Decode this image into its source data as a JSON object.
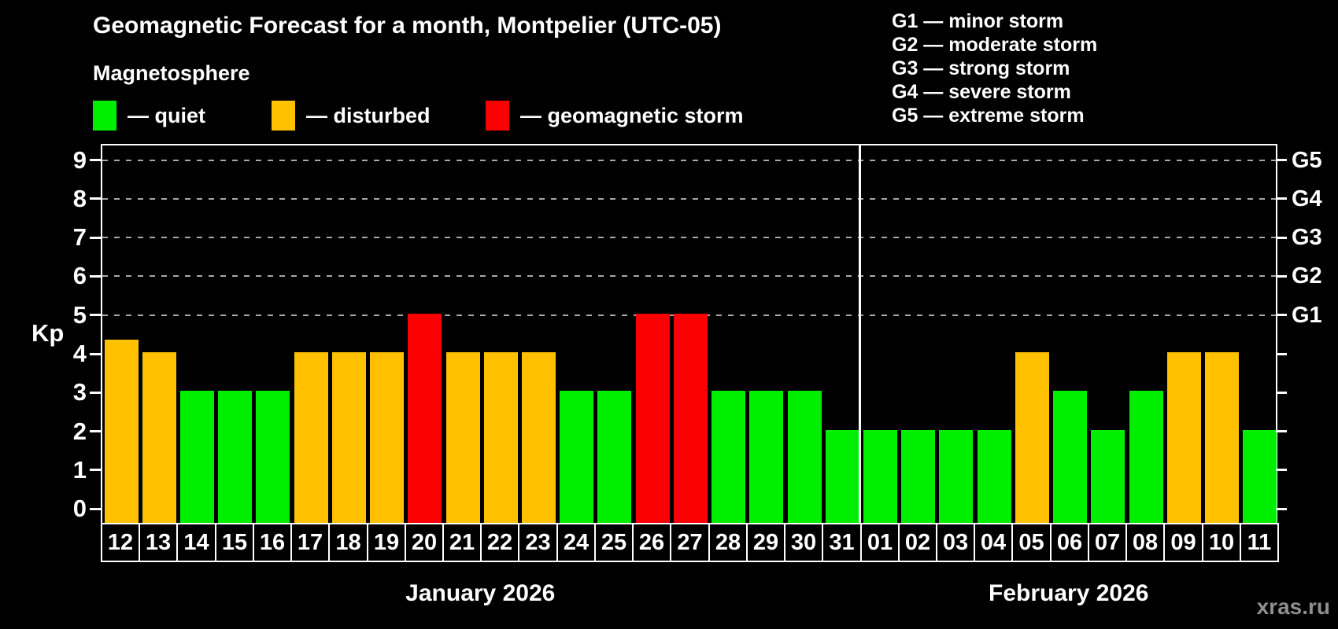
{
  "header": {
    "title": "Geomagnetic Forecast for a month, Montpelier (UTC-05)",
    "subtitle": "Magnetosphere"
  },
  "status_legend": {
    "items": [
      {
        "key": "quiet",
        "label": "— quiet",
        "color": "#00EE00"
      },
      {
        "key": "disturbed",
        "label": "— disturbed",
        "color": "#FFC000"
      },
      {
        "key": "storm",
        "label": "— geomagnetic storm",
        "color": "#FB0000"
      }
    ]
  },
  "g_scale_legend": {
    "lines": [
      "G1 — minor storm",
      "G2 — moderate storm",
      "G3 — strong storm",
      "G4 — severe storm",
      "G5 — extreme storm"
    ]
  },
  "chart_data": {
    "type": "bar",
    "title": "Geomagnetic Forecast for a month, Montpelier (UTC-05)",
    "ylabel": "Kp",
    "ylim": [
      -0.4,
      9.4
    ],
    "yticks": [
      0,
      1,
      2,
      3,
      4,
      5,
      6,
      7,
      8,
      9
    ],
    "gridlines_at_kp": [
      5,
      6,
      7,
      8,
      9
    ],
    "grid": "dashed gray horizontal lines at storm levels only",
    "legend_position": "top-left and top-right",
    "right_axis": [
      {
        "kp": 5,
        "label": "G1"
      },
      {
        "kp": 6,
        "label": "G2"
      },
      {
        "kp": 7,
        "label": "G3"
      },
      {
        "kp": 8,
        "label": "G4"
      },
      {
        "kp": 9,
        "label": "G5"
      }
    ],
    "status_colors": {
      "quiet": "#00EE00",
      "disturbed": "#FFC000",
      "storm": "#FB0000"
    },
    "months": [
      {
        "label": "January 2026",
        "first_day_index": 0,
        "day_count": 20
      },
      {
        "label": "February 2026",
        "first_day_index": 20,
        "day_count": 11
      }
    ],
    "bars": [
      {
        "day": "12",
        "kp": 4.33,
        "status": "disturbed"
      },
      {
        "day": "13",
        "kp": 4,
        "status": "disturbed"
      },
      {
        "day": "14",
        "kp": 3,
        "status": "quiet"
      },
      {
        "day": "15",
        "kp": 3,
        "status": "quiet"
      },
      {
        "day": "16",
        "kp": 3,
        "status": "quiet"
      },
      {
        "day": "17",
        "kp": 4,
        "status": "disturbed"
      },
      {
        "day": "18",
        "kp": 4,
        "status": "disturbed"
      },
      {
        "day": "19",
        "kp": 4,
        "status": "disturbed"
      },
      {
        "day": "20",
        "kp": 5,
        "status": "storm"
      },
      {
        "day": "21",
        "kp": 4,
        "status": "disturbed"
      },
      {
        "day": "22",
        "kp": 4,
        "status": "disturbed"
      },
      {
        "day": "23",
        "kp": 4,
        "status": "disturbed"
      },
      {
        "day": "24",
        "kp": 3,
        "status": "quiet"
      },
      {
        "day": "25",
        "kp": 3,
        "status": "quiet"
      },
      {
        "day": "26",
        "kp": 5,
        "status": "storm"
      },
      {
        "day": "27",
        "kp": 5,
        "status": "storm"
      },
      {
        "day": "28",
        "kp": 3,
        "status": "quiet"
      },
      {
        "day": "29",
        "kp": 3,
        "status": "quiet"
      },
      {
        "day": "30",
        "kp": 3,
        "status": "quiet"
      },
      {
        "day": "31",
        "kp": 2,
        "status": "quiet"
      },
      {
        "day": "01",
        "kp": 2,
        "status": "quiet"
      },
      {
        "day": "02",
        "kp": 2,
        "status": "quiet"
      },
      {
        "day": "03",
        "kp": 2,
        "status": "quiet"
      },
      {
        "day": "04",
        "kp": 2,
        "status": "quiet"
      },
      {
        "day": "05",
        "kp": 4,
        "status": "disturbed"
      },
      {
        "day": "06",
        "kp": 3,
        "status": "quiet"
      },
      {
        "day": "07",
        "kp": 2,
        "status": "quiet"
      },
      {
        "day": "08",
        "kp": 3,
        "status": "quiet"
      },
      {
        "day": "09",
        "kp": 4,
        "status": "disturbed"
      },
      {
        "day": "10",
        "kp": 4,
        "status": "disturbed"
      },
      {
        "day": "11",
        "kp": 2,
        "status": "quiet"
      }
    ]
  },
  "watermark": "xras.ru"
}
